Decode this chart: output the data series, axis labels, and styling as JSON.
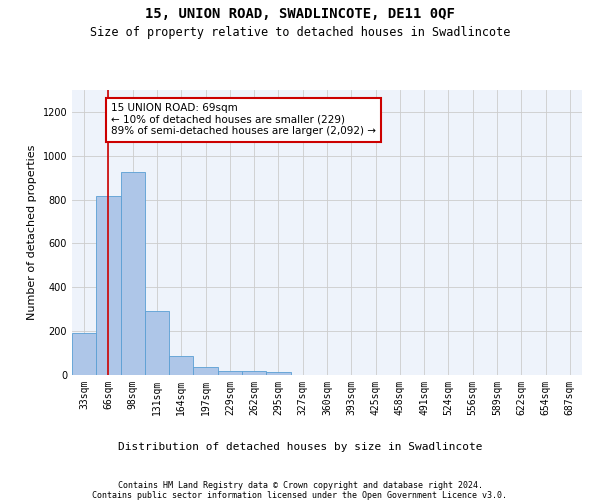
{
  "title": "15, UNION ROAD, SWADLINCOTE, DE11 0QF",
  "subtitle": "Size of property relative to detached houses in Swadlincote",
  "xlabel": "Distribution of detached houses by size in Swadlincote",
  "ylabel": "Number of detached properties",
  "bar_labels": [
    "33sqm",
    "66sqm",
    "98sqm",
    "131sqm",
    "164sqm",
    "197sqm",
    "229sqm",
    "262sqm",
    "295sqm",
    "327sqm",
    "360sqm",
    "393sqm",
    "425sqm",
    "458sqm",
    "491sqm",
    "524sqm",
    "556sqm",
    "589sqm",
    "622sqm",
    "654sqm",
    "687sqm"
  ],
  "bar_values": [
    190,
    815,
    925,
    290,
    88,
    35,
    20,
    17,
    12,
    0,
    0,
    0,
    0,
    0,
    0,
    0,
    0,
    0,
    0,
    0,
    0
  ],
  "bar_color": "#aec6e8",
  "bar_edge_color": "#5a9fd4",
  "grid_color": "#cccccc",
  "bg_color": "#eef3fb",
  "annotation_box_text": "15 UNION ROAD: 69sqm\n← 10% of detached houses are smaller (229)\n89% of semi-detached houses are larger (2,092) →",
  "annotation_box_color": "#cc0000",
  "vline_x": 1.0,
  "vline_color": "#cc0000",
  "ylim": [
    0,
    1300
  ],
  "yticks": [
    0,
    200,
    400,
    600,
    800,
    1000,
    1200
  ],
  "footer_line1": "Contains HM Land Registry data © Crown copyright and database right 2024.",
  "footer_line2": "Contains public sector information licensed under the Open Government Licence v3.0.",
  "title_fontsize": 10,
  "subtitle_fontsize": 8.5,
  "ylabel_fontsize": 8,
  "xlabel_fontsize": 8,
  "tick_fontsize": 7,
  "annotation_fontsize": 7.5,
  "footer_fontsize": 6
}
